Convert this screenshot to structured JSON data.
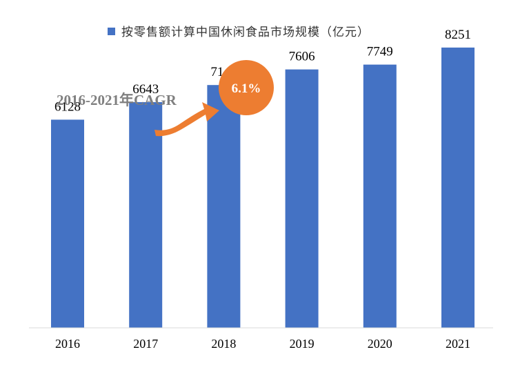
{
  "chart_data": {
    "type": "bar",
    "title": "",
    "legend": {
      "position": "top",
      "entries": [
        "按零售额计算中国休闲食品市场规模（亿元）"
      ]
    },
    "categories": [
      "2016",
      "2017",
      "2018",
      "2019",
      "2020",
      "2021"
    ],
    "series": [
      {
        "name": "按零售额计算中国休闲食品市场规模（亿元）",
        "values": [
          6128,
          6643,
          7147,
          7606,
          7749,
          8251
        ]
      }
    ],
    "data_labels": [
      "6128",
      "6643",
      "7147",
      "7606",
      "7749",
      "8251"
    ],
    "xlabel": "",
    "ylabel": "",
    "ylim": [
      0,
      9000
    ],
    "grid": false,
    "annotation": {
      "label": "2016-2021年CAGR",
      "value": "6.1%"
    },
    "colors": {
      "bar": "#4472c4",
      "callout": "#ed7d31",
      "arrow": "#ed7d31",
      "annotation_text": "#7f7f7f",
      "axis": "#d9d9d9"
    }
  }
}
